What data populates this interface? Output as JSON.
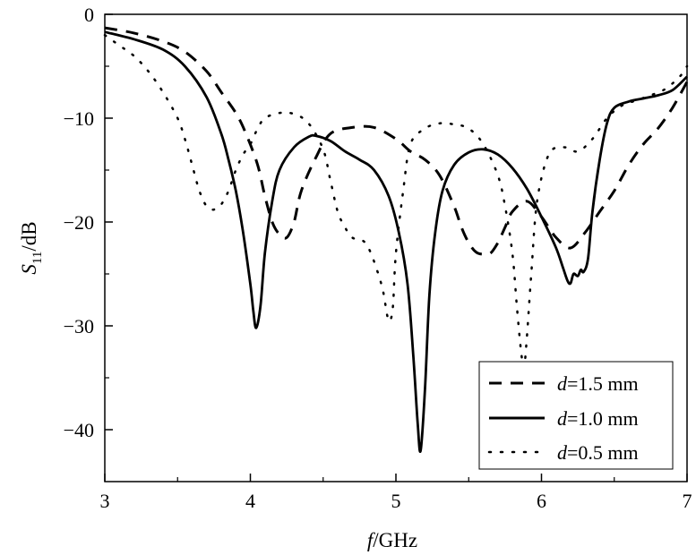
{
  "chart_data": {
    "type": "line",
    "title": "",
    "xlabel": {
      "var": "f",
      "unit": "/GHz"
    },
    "ylabel": {
      "var": "S",
      "sub": "11",
      "unit": "/dB"
    },
    "xlim": [
      3,
      7
    ],
    "ylim": [
      -45,
      0
    ],
    "xticks": [
      3,
      4,
      5,
      6,
      7
    ],
    "yticks": [
      0,
      -10,
      -20,
      -30,
      -40
    ],
    "ytick_labels": [
      "0",
      "−10",
      "−20",
      "−30",
      "−40"
    ],
    "grid": false,
    "legend_position": "bottom-right",
    "series": [
      {
        "name_var": "d",
        "name_value": "=1.5 mm",
        "style": "dashed",
        "x": [
          3.0,
          3.2,
          3.4,
          3.55,
          3.7,
          3.8,
          3.9,
          3.97,
          4.05,
          4.1,
          4.15,
          4.2,
          4.25,
          4.3,
          4.35,
          4.45,
          4.55,
          4.7,
          4.85,
          5.0,
          5.1,
          5.2,
          5.3,
          5.4,
          5.45,
          5.5,
          5.55,
          5.6,
          5.65,
          5.7,
          5.75,
          5.8,
          5.9,
          6.0,
          6.1,
          6.2,
          6.3,
          6.4,
          6.5,
          6.6,
          6.7,
          6.8,
          6.9,
          7.0
        ],
        "y": [
          -1.3,
          -1.8,
          -2.6,
          -3.6,
          -5.5,
          -7.5,
          -9.5,
          -11.5,
          -14.5,
          -17.5,
          -20.0,
          -21.2,
          -21.5,
          -20.0,
          -17.0,
          -13.8,
          -11.5,
          -10.9,
          -10.9,
          -12.0,
          -13.2,
          -14.0,
          -15.5,
          -18.5,
          -20.5,
          -22.0,
          -22.9,
          -23.1,
          -23.0,
          -22.0,
          -20.5,
          -19.0,
          -18.0,
          -19.5,
          -21.5,
          -22.5,
          -21.0,
          -19.0,
          -17.0,
          -14.5,
          -12.5,
          -11.0,
          -9.0,
          -6.5
        ]
      },
      {
        "name_var": "d",
        "name_value": "=1.0 mm",
        "style": "solid",
        "x": [
          3.0,
          3.2,
          3.4,
          3.55,
          3.7,
          3.8,
          3.85,
          3.9,
          3.95,
          4.0,
          4.02,
          4.04,
          4.07,
          4.1,
          4.15,
          4.2,
          4.3,
          4.4,
          4.45,
          4.55,
          4.65,
          4.75,
          4.85,
          4.95,
          5.02,
          5.08,
          5.12,
          5.15,
          5.17,
          5.2,
          5.23,
          5.27,
          5.32,
          5.4,
          5.5,
          5.6,
          5.7,
          5.8,
          5.9,
          6.0,
          6.1,
          6.15,
          6.18,
          6.2,
          6.22,
          6.25,
          6.27,
          6.29,
          6.32,
          6.35,
          6.4,
          6.45,
          6.5,
          6.6,
          6.7,
          6.8,
          6.9,
          7.0
        ],
        "y": [
          -1.7,
          -2.4,
          -3.4,
          -5.0,
          -8.0,
          -11.5,
          -14.0,
          -17.0,
          -21.0,
          -26.0,
          -28.5,
          -30.2,
          -28.0,
          -23.0,
          -18.0,
          -15.0,
          -12.8,
          -11.8,
          -11.7,
          -12.2,
          -13.2,
          -14.0,
          -15.0,
          -17.5,
          -21.0,
          -26.0,
          -33.0,
          -39.5,
          -42.0,
          -36.0,
          -27.0,
          -21.0,
          -17.0,
          -14.5,
          -13.3,
          -13.0,
          -13.5,
          -14.8,
          -16.8,
          -19.5,
          -22.5,
          -24.5,
          -25.7,
          -25.9,
          -25.0,
          -25.2,
          -24.6,
          -24.8,
          -23.5,
          -19.0,
          -14.0,
          -10.5,
          -9.0,
          -8.4,
          -8.1,
          -7.8,
          -7.3,
          -6.0
        ]
      },
      {
        "name_var": "d",
        "name_value": "=0.5 mm",
        "style": "dotted",
        "x": [
          3.0,
          3.1,
          3.2,
          3.3,
          3.4,
          3.5,
          3.55,
          3.6,
          3.65,
          3.7,
          3.75,
          3.8,
          3.85,
          3.9,
          3.95,
          4.0,
          4.05,
          4.1,
          4.2,
          4.3,
          4.4,
          4.5,
          4.55,
          4.6,
          4.65,
          4.7,
          4.8,
          4.9,
          4.94,
          4.96,
          4.98,
          5.0,
          5.05,
          5.1,
          5.2,
          5.3,
          5.4,
          5.5,
          5.6,
          5.7,
          5.75,
          5.8,
          5.83,
          5.86,
          5.88,
          5.9,
          5.93,
          5.97,
          6.05,
          6.15,
          6.25,
          6.35,
          6.45,
          6.55,
          6.65,
          6.75,
          6.85,
          6.95,
          7.0
        ],
        "y": [
          -2.0,
          -3.0,
          -4.0,
          -5.5,
          -7.5,
          -10.0,
          -12.0,
          -14.5,
          -17.0,
          -18.5,
          -18.8,
          -18.3,
          -17.0,
          -15.0,
          -13.5,
          -12.5,
          -11.0,
          -10.0,
          -9.5,
          -9.6,
          -10.5,
          -13.0,
          -16.0,
          -19.0,
          -20.5,
          -21.5,
          -22.2,
          -26.0,
          -29.0,
          -29.5,
          -28.0,
          -23.0,
          -17.0,
          -12.5,
          -11.0,
          -10.5,
          -10.6,
          -11.0,
          -12.5,
          -15.5,
          -18.5,
          -23.0,
          -28.0,
          -32.5,
          -34.0,
          -31.0,
          -25.0,
          -18.0,
          -13.5,
          -12.8,
          -13.2,
          -12.0,
          -10.0,
          -8.8,
          -8.3,
          -7.8,
          -7.2,
          -6.0,
          -5.0
        ]
      }
    ]
  }
}
